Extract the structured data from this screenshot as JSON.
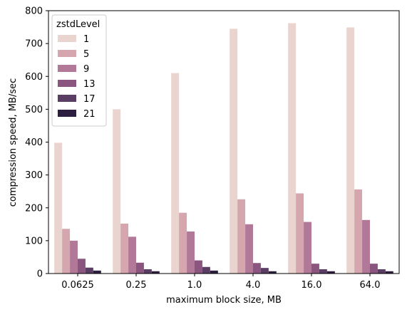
{
  "chart_data": {
    "type": "bar",
    "xlabel": "maximum block size, MB",
    "ylabel": "compression speed, MB/sec",
    "categories": [
      "0.0625",
      "0.25",
      "1.0",
      "4.0",
      "16.0",
      "64.0"
    ],
    "ylim": [
      0,
      800
    ],
    "yticks": [
      0,
      100,
      200,
      300,
      400,
      500,
      600,
      700,
      800
    ],
    "grid": false,
    "legend": {
      "title": "zstdLevel",
      "placement": "top-left"
    },
    "series": [
      {
        "name": "1",
        "color": "#ead4d0",
        "values": [
          398,
          500,
          610,
          745,
          762,
          749
        ]
      },
      {
        "name": "5",
        "color": "#d5a6ad",
        "values": [
          136,
          152,
          185,
          226,
          244,
          256
        ]
      },
      {
        "name": "9",
        "color": "#b27898",
        "values": [
          100,
          112,
          128,
          150,
          157,
          163
        ]
      },
      {
        "name": "13",
        "color": "#8a5680",
        "values": [
          45,
          33,
          40,
          32,
          30,
          30
        ]
      },
      {
        "name": "17",
        "color": "#593d63",
        "values": [
          18,
          13,
          20,
          17,
          13,
          13
        ]
      },
      {
        "name": "21",
        "color": "#2c1e3e",
        "values": [
          9,
          7,
          9,
          7,
          7,
          7
        ]
      }
    ]
  }
}
